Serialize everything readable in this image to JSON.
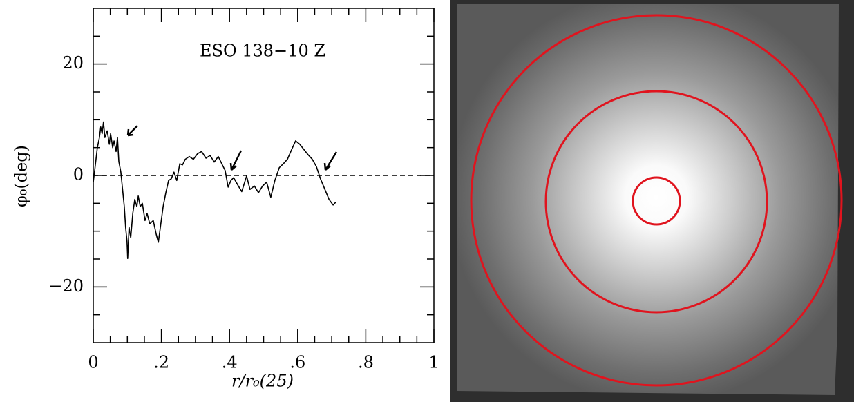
{
  "chart_data": {
    "type": "line",
    "annotation": "ESO 138−10    Z",
    "xlabel": "r/r₀(25)",
    "ylabel": "φ₀(deg)",
    "xlim": [
      0,
      1
    ],
    "ylim": [
      -30,
      30
    ],
    "xticks": [
      0,
      {
        "value": 0.2,
        "label": ".2"
      },
      {
        "value": 0.4,
        "label": ".4"
      },
      {
        "value": 0.6,
        "label": ".6"
      },
      {
        "value": 0.8,
        "label": ".8"
      },
      1
    ],
    "yticks": [
      {
        "value": -20,
        "label": "−20"
      },
      0,
      20
    ],
    "hline": 0,
    "color": "#000000",
    "x": [
      0,
      0.006,
      0.012,
      0.018,
      0.022,
      0.026,
      0.03,
      0.034,
      0.041,
      0.047,
      0.051,
      0.057,
      0.061,
      0.067,
      0.071,
      0.075,
      0.081,
      0.085,
      0.091,
      0.095,
      0.099,
      0.101,
      0.105,
      0.11,
      0.116,
      0.122,
      0.128,
      0.132,
      0.138,
      0.144,
      0.152,
      0.158,
      0.166,
      0.176,
      0.185,
      0.191,
      0.197,
      0.205,
      0.213,
      0.221,
      0.229,
      0.237,
      0.245,
      0.254,
      0.262,
      0.27,
      0.282,
      0.294,
      0.306,
      0.318,
      0.331,
      0.343,
      0.355,
      0.367,
      0.379,
      0.387,
      0.396,
      0.404,
      0.412,
      0.426,
      0.436,
      0.45,
      0.46,
      0.473,
      0.485,
      0.497,
      0.509,
      0.521,
      0.533,
      0.546,
      0.558,
      0.57,
      0.582,
      0.594,
      0.606,
      0.619,
      0.631,
      0.643,
      0.655,
      0.667,
      0.68,
      0.692,
      0.704,
      0.712
    ],
    "values": [
      -1.2,
      1.9,
      5,
      6.8,
      8.7,
      7.5,
      9.6,
      6.8,
      8,
      5.6,
      7.5,
      5,
      6.2,
      4.3,
      6.8,
      2.5,
      0.6,
      -1.9,
      -5.6,
      -9.3,
      -11.8,
      -14.9,
      -9.3,
      -11.2,
      -6.8,
      -4.3,
      -5.6,
      -3.7,
      -5.6,
      -5,
      -8.1,
      -6.8,
      -8.7,
      -8.1,
      -10.6,
      -12,
      -9.3,
      -5.6,
      -3.1,
      -0.9,
      -0.6,
      0.6,
      -0.9,
      2.1,
      1.9,
      2.9,
      3.4,
      2.9,
      3.9,
      4.3,
      3.1,
      3.6,
      2.4,
      3.4,
      1.9,
      0.9,
      -2.1,
      -0.9,
      -0.4,
      -1.9,
      -2.9,
      -0.1,
      -2.5,
      -1.9,
      -3.1,
      -1.9,
      -1.2,
      -3.9,
      -0.9,
      1.4,
      2.1,
      2.9,
      4.6,
      6.2,
      5.6,
      4.6,
      3.7,
      2.9,
      1.6,
      -0.6,
      -2.5,
      -4.3,
      -5.3,
      -4.8
    ]
  }
}
